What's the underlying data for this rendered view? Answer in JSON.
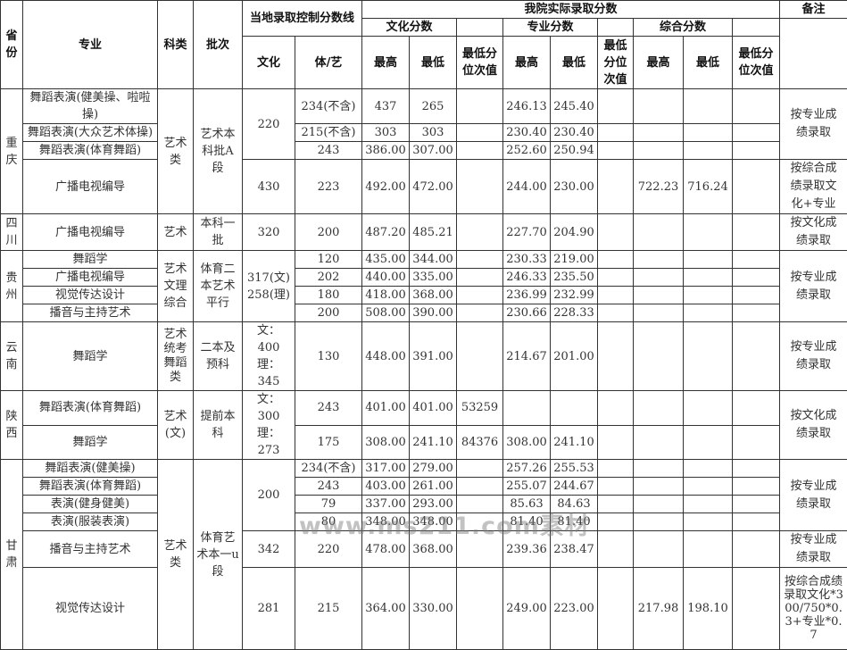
{
  "header": {
    "province": "省份",
    "major": "专业",
    "category": "科类",
    "batch": "批次",
    "local_line": "当地录取控制分数线",
    "actual": "我院实际录取分数",
    "remark": "备注",
    "culture_score": "文化分数",
    "major_score": "专业分数",
    "composite_score": "综合分数",
    "culture": "文化",
    "sport_art": "体/艺",
    "max": "最高",
    "min": "最低",
    "min_rank": "最低分位次值"
  },
  "rows": [
    {
      "p": "重庆",
      "m": "舞蹈表演(健美操、啦啦操)",
      "k": "艺术类",
      "b": "艺术本科批A段",
      "w": "220",
      "t": "234(不含)",
      "h1": "437",
      "l1": "265",
      "h2": "246.13",
      "l2": "245.40",
      "n": "按专业成绩录取"
    },
    {
      "m": "舞蹈表演(大众艺术体操)",
      "t": "215(不含)",
      "h1": "303",
      "l1": "303",
      "h2": "230.40",
      "l2": "230.40"
    },
    {
      "m": "舞蹈表演(体育舞蹈)",
      "t": "243",
      "h1": "386.00",
      "l1": "307.00",
      "h2": "252.60",
      "l2": "250.94"
    },
    {
      "m": "广播电视编导",
      "w": "430",
      "t": "223",
      "h1": "492.00",
      "l1": "472.00",
      "h2": "244.00",
      "l2": "230.00",
      "h3": "722.23",
      "l3": "716.24",
      "n": "按综合成绩录取文化+专业"
    },
    {
      "p": "四川",
      "m": "广播电视编导",
      "k": "艺术",
      "b": "本科一批",
      "w": "320",
      "t": "200",
      "h1": "487.20",
      "l1": "485.21",
      "h2": "227.70",
      "l2": "204.90",
      "n": "按文化成绩录取"
    },
    {
      "p": "贵州",
      "m": "舞蹈学",
      "k": "艺术文理综合",
      "b": "体育二本艺术平行",
      "w": "317(文) 258(理)",
      "t": "120",
      "h1": "435.00",
      "l1": "344.00",
      "h2": "230.33",
      "l2": "219.00",
      "n": "按专业成绩录取"
    },
    {
      "m": "广播电视编导",
      "t": "202",
      "h1": "440.00",
      "l1": "335.00",
      "h2": "246.33",
      "l2": "235.50"
    },
    {
      "m": "视觉传达设计",
      "t": "180",
      "h1": "418.00",
      "l1": "368.00",
      "h2": "236.99",
      "l2": "232.99"
    },
    {
      "m": "播音与主持艺术",
      "t": "200",
      "h1": "508.00",
      "l1": "390.00",
      "h2": "230.66",
      "l2": "228.33"
    },
    {
      "p": "云南",
      "m": "舞蹈学",
      "k": "艺术统考舞蹈类",
      "b": "二本及预科",
      "w": "文：400 理：345",
      "t": "130",
      "h1": "448.00",
      "l1": "391.00",
      "h2": "214.67",
      "l2": "201.00",
      "n": "按专业成绩录取"
    },
    {
      "p": "陕西",
      "m": "舞蹈表演(体育舞蹈)",
      "k": "艺术(文)",
      "b": "提前本科",
      "w": "文：300 理：273",
      "t": "243",
      "h1": "401.00",
      "l1": "401.00",
      "r1": "53259",
      "n": "按文化成绩录取"
    },
    {
      "m": "舞蹈学",
      "t": "175",
      "h1": "308.00",
      "l1": "241.10",
      "r1": "84376",
      "h2": "308.00",
      "l2": "241.10"
    },
    {
      "p": "甘肃",
      "m": "舞蹈表演(健美操)",
      "k": "艺术类",
      "b": "体育艺术本一u段",
      "w": "200",
      "t": "234(不含)",
      "h1": "317.00",
      "l1": "279.00",
      "h2": "257.26",
      "l2": "255.53",
      "n": "按专业成绩录取"
    },
    {
      "m": "舞蹈表演(体育舞蹈)",
      "t": "243",
      "h1": "403.00",
      "l1": "261.00",
      "h2": "255.07",
      "l2": "244.67"
    },
    {
      "m": "表演(健身健美)",
      "t": "79",
      "h1": "337.00",
      "l1": "293.00",
      "h2": "85.63",
      "l2": "84.63"
    },
    {
      "m": "表演(服装表演)",
      "t": "80",
      "h1": "348.00",
      "l1": "348.00",
      "h2": "81.40",
      "l2": "81.40"
    },
    {
      "m": "播音与主持艺术",
      "w": "342",
      "t": "220",
      "h1": "478.00",
      "l1": "368.00",
      "h2": "239.36",
      "l2": "238.47",
      "n": "按专业成绩录取"
    },
    {
      "m": "视觉传达设计",
      "w": "281",
      "t": "215",
      "h1": "364.00",
      "l1": "330.00",
      "h2": "249.00",
      "l2": "223.00",
      "h3": "217.98",
      "l3": "198.10",
      "n": "按综合成绩录取文化*300/750*0.3+专业*0.7"
    }
  ],
  "watermark": "www.ms211.com素材"
}
